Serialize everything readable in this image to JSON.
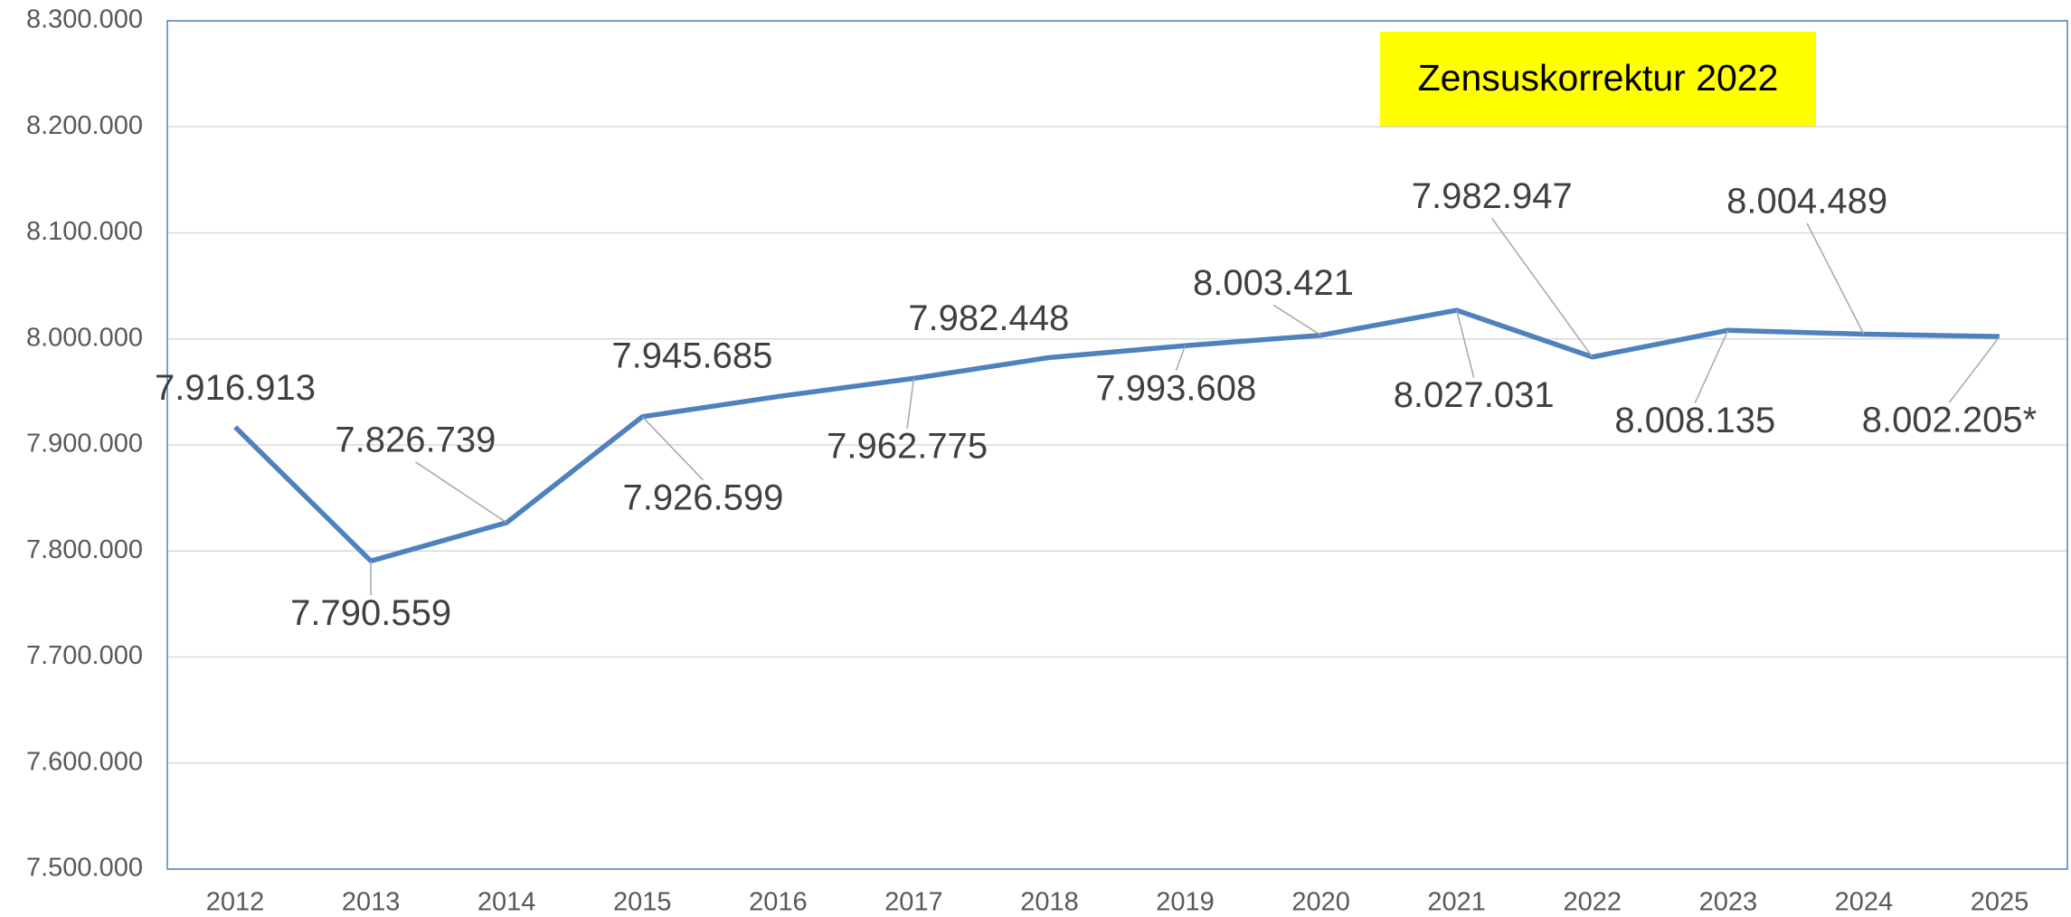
{
  "chart_data": {
    "type": "line",
    "annotation": "Zensuskorrektur 2022",
    "categories": [
      "2012",
      "2013",
      "2014",
      "2015",
      "2016",
      "2017",
      "2018",
      "2019",
      "2020",
      "2021",
      "2022",
      "2023",
      "2024",
      "2025"
    ],
    "values": [
      7916913,
      7790559,
      7826739,
      7926599,
      7945685,
      7962775,
      7982448,
      7993608,
      8003421,
      8027031,
      7982947,
      8008135,
      8004489,
      8002205
    ],
    "value_labels": [
      "7.916.913",
      "7.790.559",
      "7.826.739",
      "7.926.599",
      "7.945.685",
      "7.962.775",
      "7.982.448",
      "7.993.608",
      "8.003.421",
      "8.027.031",
      "7.982.947",
      "8.008.135",
      "8.004.489",
      "8.002.205*"
    ],
    "color": "#4f81bd",
    "ylim": [
      7500000,
      8300000
    ],
    "yticks": [
      {
        "value": 7500000,
        "label": "7.500.000"
      },
      {
        "value": 7600000,
        "label": "7.600.000"
      },
      {
        "value": 7700000,
        "label": "7.700.000"
      },
      {
        "value": 7800000,
        "label": "7.800.000"
      },
      {
        "value": 7900000,
        "label": "7.900.000"
      },
      {
        "value": 8000000,
        "label": "8.000.000"
      },
      {
        "value": 8100000,
        "label": "8.100.000"
      },
      {
        "value": 8200000,
        "label": "8.200.000"
      },
      {
        "value": 8300000,
        "label": "8.300.000"
      }
    ],
    "grid": true
  }
}
